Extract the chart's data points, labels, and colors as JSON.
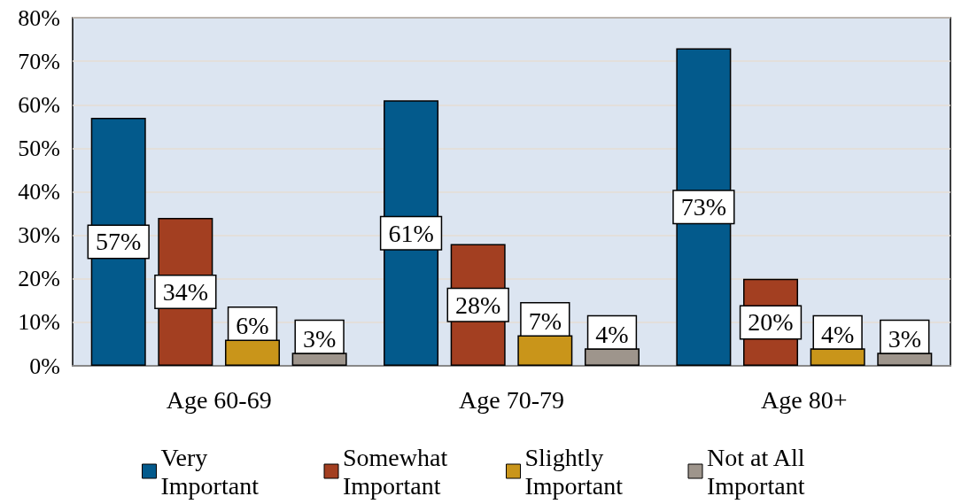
{
  "chart_data": {
    "type": "bar",
    "categories": [
      "Age 60-69",
      "Age 70-79",
      "Age 80+"
    ],
    "series": [
      {
        "name": "Very Important",
        "color": "#035a8c",
        "values": [
          57,
          61,
          73
        ],
        "value_labels": [
          "57%",
          "61%",
          "73%"
        ]
      },
      {
        "name": "Somewhat Important",
        "color": "#a33f21",
        "values": [
          34,
          28,
          20
        ],
        "value_labels": [
          "34%",
          "28%",
          "20%"
        ]
      },
      {
        "name": "Slightly Important",
        "color": "#c9951a",
        "values": [
          6,
          7,
          4
        ],
        "value_labels": [
          "6%",
          "7%",
          "4%"
        ]
      },
      {
        "name": "Not at All Important",
        "color": "#9e958c",
        "values": [
          3,
          4,
          3
        ],
        "value_labels": [
          "3%",
          "4%",
          "3%"
        ]
      }
    ],
    "ylim": [
      0,
      80
    ],
    "yticks": [
      {
        "value": 0,
        "label": "0%"
      },
      {
        "value": 10,
        "label": "10%"
      },
      {
        "value": 20,
        "label": "20%"
      },
      {
        "value": 30,
        "label": "30%"
      },
      {
        "value": 40,
        "label": "40%"
      },
      {
        "value": 50,
        "label": "50%"
      },
      {
        "value": 60,
        "label": "60%"
      },
      {
        "value": 70,
        "label": "70%"
      },
      {
        "value": 80,
        "label": "80%"
      }
    ],
    "grid": "y",
    "legend": "bottom"
  }
}
